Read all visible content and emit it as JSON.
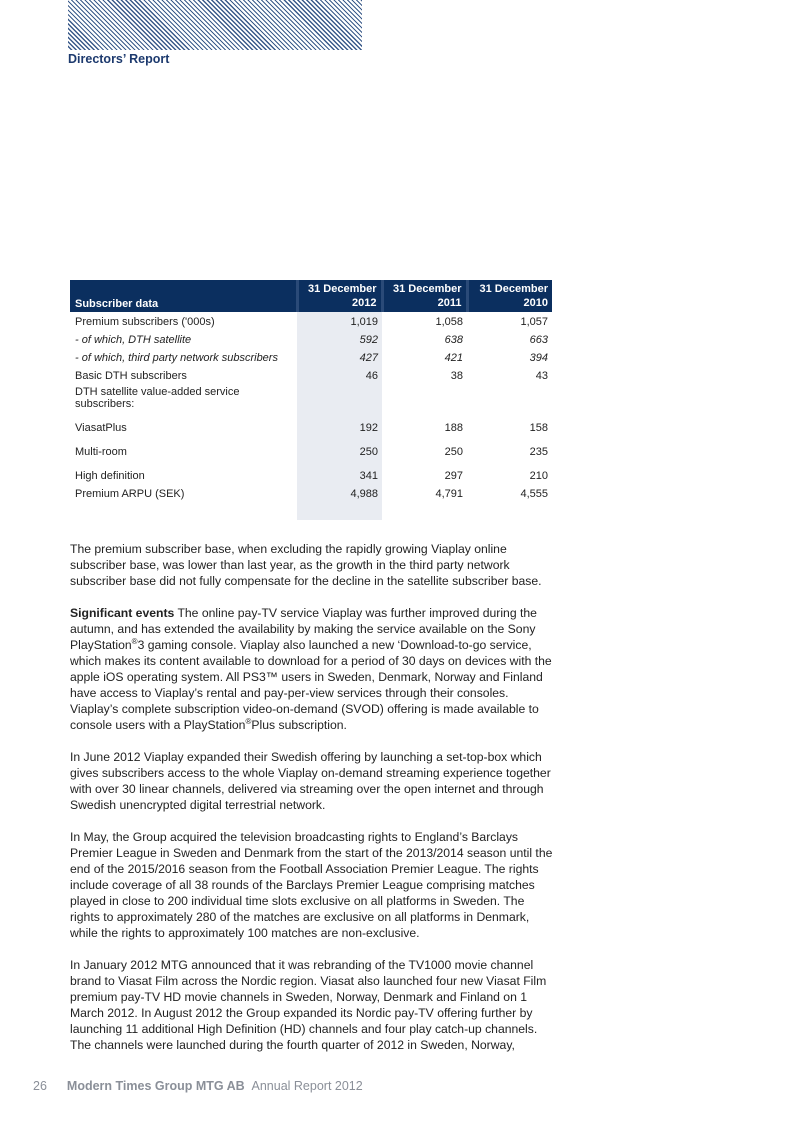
{
  "header": {
    "section_title": "Directors’ Report"
  },
  "table": {
    "title": "Subscriber data",
    "columns": [
      {
        "l1": "31 December",
        "l2": "2012"
      },
      {
        "l1": "31 December",
        "l2": "2011"
      },
      {
        "l1": "31 December",
        "l2": "2010"
      }
    ],
    "rows": [
      {
        "label": "Premium subscribers ('000s)",
        "v": [
          "1,019",
          "1,058",
          "1,057"
        ]
      },
      {
        "label": " - of which, DTH satellite",
        "v": [
          "592",
          "638",
          "663"
        ]
      },
      {
        "label": " - of which, third party network subscribers",
        "v": [
          "427",
          "421",
          "394"
        ]
      },
      {
        "label": "Basic DTH subscribers",
        "v": [
          "46",
          "38",
          "43"
        ]
      },
      {
        "label": "DTH satellite value-added service subscribers:",
        "v": [
          "",
          "",
          ""
        ]
      },
      {
        "label": "ViasatPlus",
        "v": [
          "192",
          "188",
          "158"
        ]
      },
      {
        "label": "Multi-room",
        "v": [
          "250",
          "250",
          "235"
        ]
      },
      {
        "label": "High definition",
        "v": [
          "341",
          "297",
          "210"
        ]
      },
      {
        "label": "Premium ARPU (SEK)",
        "v": [
          "4,988",
          "4,791",
          "4,555"
        ]
      }
    ]
  },
  "body": {
    "p1": "The premium subscriber base, when excluding the rapidly growing Viaplay online subscriber base, was lower than last year, as the growth in the third party network subscriber base did not fully compensate for the decline in the satellite subscriber base.",
    "p2_heading": "Significant events",
    "p2_a": " The online pay-TV service Viaplay was further improved during the autumn, and has extended the availability by making the service available on the Sony PlayStation",
    "reg": "®",
    "p2_b": "3 gaming console. Viaplay also launched a new ‘Download-to-go service, which makes its content available to download for a period of 30 days on devices with the apple iOS operating system. All PS3™ users in Sweden, Denmark, Norway and Finland have access to Viaplay’s rental and pay-per-view services through their consoles. Viaplay’s complete subscription video-on-demand (SVOD) offering is made available to console users with a PlayStation",
    "p2_c": "Plus subscription.",
    "p3": "In June 2012 Viaplay expanded their Swedish offering by launching a set-top-box which gives subscribers access to the whole Viaplay on-demand streaming experience together with over 30 linear channels, delivered via streaming over the open internet and through Swedish unencrypted digital terrestrial network.",
    "p4": "In May, the Group acquired the television broadcasting rights to England’s Barclays Premier League in Sweden and Denmark from the start of the 2013/2014 season until the end of the 2015/2016 season from the Football Association Premier League. The rights include coverage of all 38 rounds of the Barclays Premier League comprising matches played in close to 200 individual time slots exclusive on all platforms in Sweden. The rights to approximately 280 of the matches are exclusive on all platforms in Denmark, while the rights to approximately 100 matches are non-exclusive.",
    "p5": "In January 2012 MTG announced that it was rebranding of the TV1000 movie channel brand to Viasat Film across the Nordic region. Viasat also launched four new Viasat Film premium pay-TV HD movie channels in Sweden, Norway, Denmark and Finland on 1 March 2012. In August 2012 the Group expanded its Nordic pay-TV offering further by launching 11 additional High Definition (HD) channels and four play catch-up channels. The channels were launched during the fourth quarter of 2012 in Sweden, Norway,"
  },
  "footer": {
    "page": "26",
    "company": "Modern Times Group MTG AB",
    "report": "Annual Report 2012"
  },
  "colors": {
    "navy": "#0b2f5f",
    "shade": "#e9ecf2",
    "footer": "#8a8f98"
  }
}
